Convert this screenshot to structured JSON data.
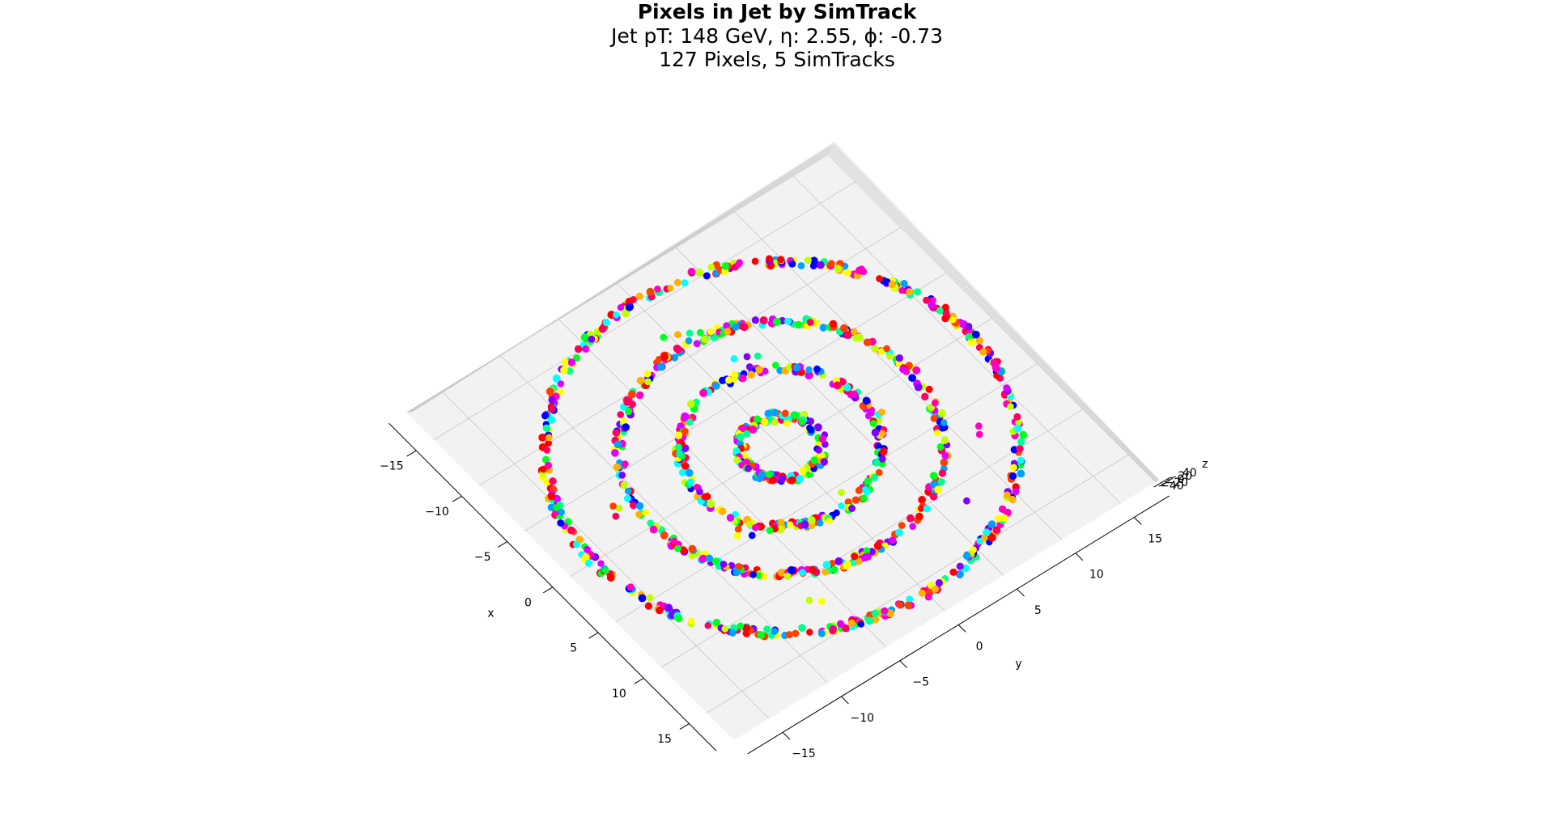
{
  "title": {
    "main": "Pixels in Jet by SimTrack",
    "line2": "Jet pT: 148 GeV, η: 2.55, ϕ: -0.73",
    "line3": "127 Pixels, 5 SimTracks"
  },
  "chart_data": {
    "type": "scatter",
    "projection": "3d",
    "xlabel": "x",
    "ylabel": "y",
    "zlabel": "z",
    "x_ticks": [
      "−15",
      "−10",
      "−5",
      "0",
      "5",
      "10",
      "15"
    ],
    "y_ticks": [
      "−15",
      "−10",
      "−5",
      "0",
      "5",
      "10",
      "15"
    ],
    "z_ticks": [
      "−40",
      "−20",
      "0",
      "20",
      "40"
    ],
    "xlim": [
      -18,
      18
    ],
    "ylim": [
      -18,
      18
    ],
    "grid": true,
    "rings": [
      {
        "radius": 2.9,
        "shape": "octagon",
        "points": 140
      },
      {
        "radius": 6.8,
        "shape": "circle",
        "points": 230
      },
      {
        "radius": 10.9,
        "shape": "circle",
        "points": 330
      },
      {
        "radius": 16.0,
        "shape": "circle",
        "points": 470
      }
    ],
    "stray_points": [
      [
        -11.2,
        1.8
      ],
      [
        -10.8,
        2.4
      ],
      [
        -11.6,
        1.2
      ],
      [
        -12.0,
        0.5
      ],
      [
        -12.4,
        -0.4
      ],
      [
        -7.6,
        3.0
      ],
      [
        -7.2,
        3.6
      ],
      [
        -6.8,
        2.6
      ],
      [
        -8.0,
        2.2
      ],
      [
        4.4,
        -5.6
      ],
      [
        4.8,
        -6.2
      ],
      [
        5.2,
        -5.0
      ],
      [
        3.8,
        -6.6
      ],
      [
        4.2,
        -7.0
      ],
      [
        -1.4,
        1.6
      ],
      [
        -2.0,
        1.0
      ],
      [
        1.4,
        6.6
      ],
      [
        1.8,
        7.2
      ],
      [
        6.6,
        2.2
      ],
      [
        5.6,
        0.8
      ],
      [
        -2.6,
        -11.8
      ],
      [
        -2.2,
        -12.4
      ],
      [
        -3.0,
        -12.0
      ],
      [
        6.8,
        11.6
      ],
      [
        7.4,
        11.2
      ],
      [
        11.6,
        -6.6
      ],
      [
        12.2,
        -6.0
      ],
      [
        11.4,
        7.0
      ]
    ],
    "colors": [
      "#ff0000",
      "#ff4000",
      "#ffb000",
      "#ffff00",
      "#c0ff00",
      "#00ff20",
      "#00ff90",
      "#00ffff",
      "#00a0ff",
      "#0000ff",
      "#8000ff",
      "#e000ff",
      "#ff00c0",
      "#ff0060"
    ]
  }
}
